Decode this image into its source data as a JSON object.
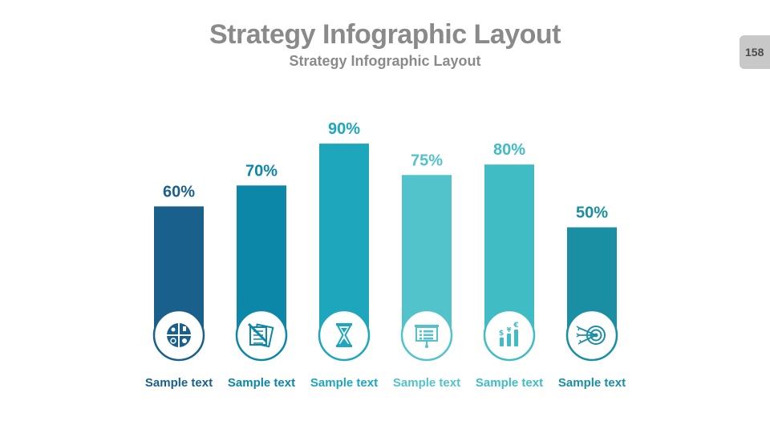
{
  "slide": {
    "title": "Strategy Infographic Layout",
    "subtitle": "Strategy Infographic Layout",
    "page_number": "158"
  },
  "chart_data": {
    "type": "bar",
    "categories": [
      "Sample text",
      "Sample text",
      "Sample text",
      "Sample text",
      "Sample text",
      "Sample text"
    ],
    "values": [
      60,
      70,
      90,
      75,
      80,
      50
    ],
    "value_labels": [
      "60%",
      "70%",
      "90%",
      "75%",
      "80%",
      "50%"
    ],
    "ylim": [
      0,
      100
    ],
    "title": "",
    "xlabel": "",
    "ylabel": "",
    "grid": false,
    "colors": [
      "#1a608c",
      "#0d87a8",
      "#1ea6bd",
      "#52c3cb",
      "#40bcc5",
      "#1a8ea3"
    ],
    "icons": [
      "quadrant-diagram-icon",
      "documents-pencil-icon",
      "hourglass-icon",
      "presentation-board-icon",
      "currency-growth-icon",
      "target-arrows-icon"
    ]
  }
}
